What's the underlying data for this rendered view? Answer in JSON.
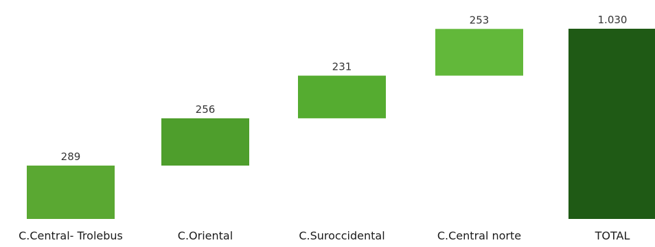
{
  "chart_data": {
    "type": "bar",
    "subtype": "waterfall",
    "categories": [
      "C.Central- Trolebus",
      "C.Oriental",
      "C.Suroccidental",
      "C.Central norte",
      "TOTAL"
    ],
    "values": [
      289,
      256,
      231,
      253,
      1030
    ],
    "value_labels": [
      "289",
      "256",
      "231",
      "253",
      "1.030"
    ],
    "total_index": 4,
    "ylim": [
      0,
      1030
    ],
    "grid": false,
    "legend": "none",
    "title": "",
    "xlabel": "",
    "ylabel": ""
  },
  "colors": {
    "step_bars": [
      "#5aa832",
      "#4e9e2c",
      "#55ac30",
      "#62b83a"
    ],
    "total_bar": "#1f5a15",
    "label_text": "#333333",
    "background": "#ffffff"
  }
}
